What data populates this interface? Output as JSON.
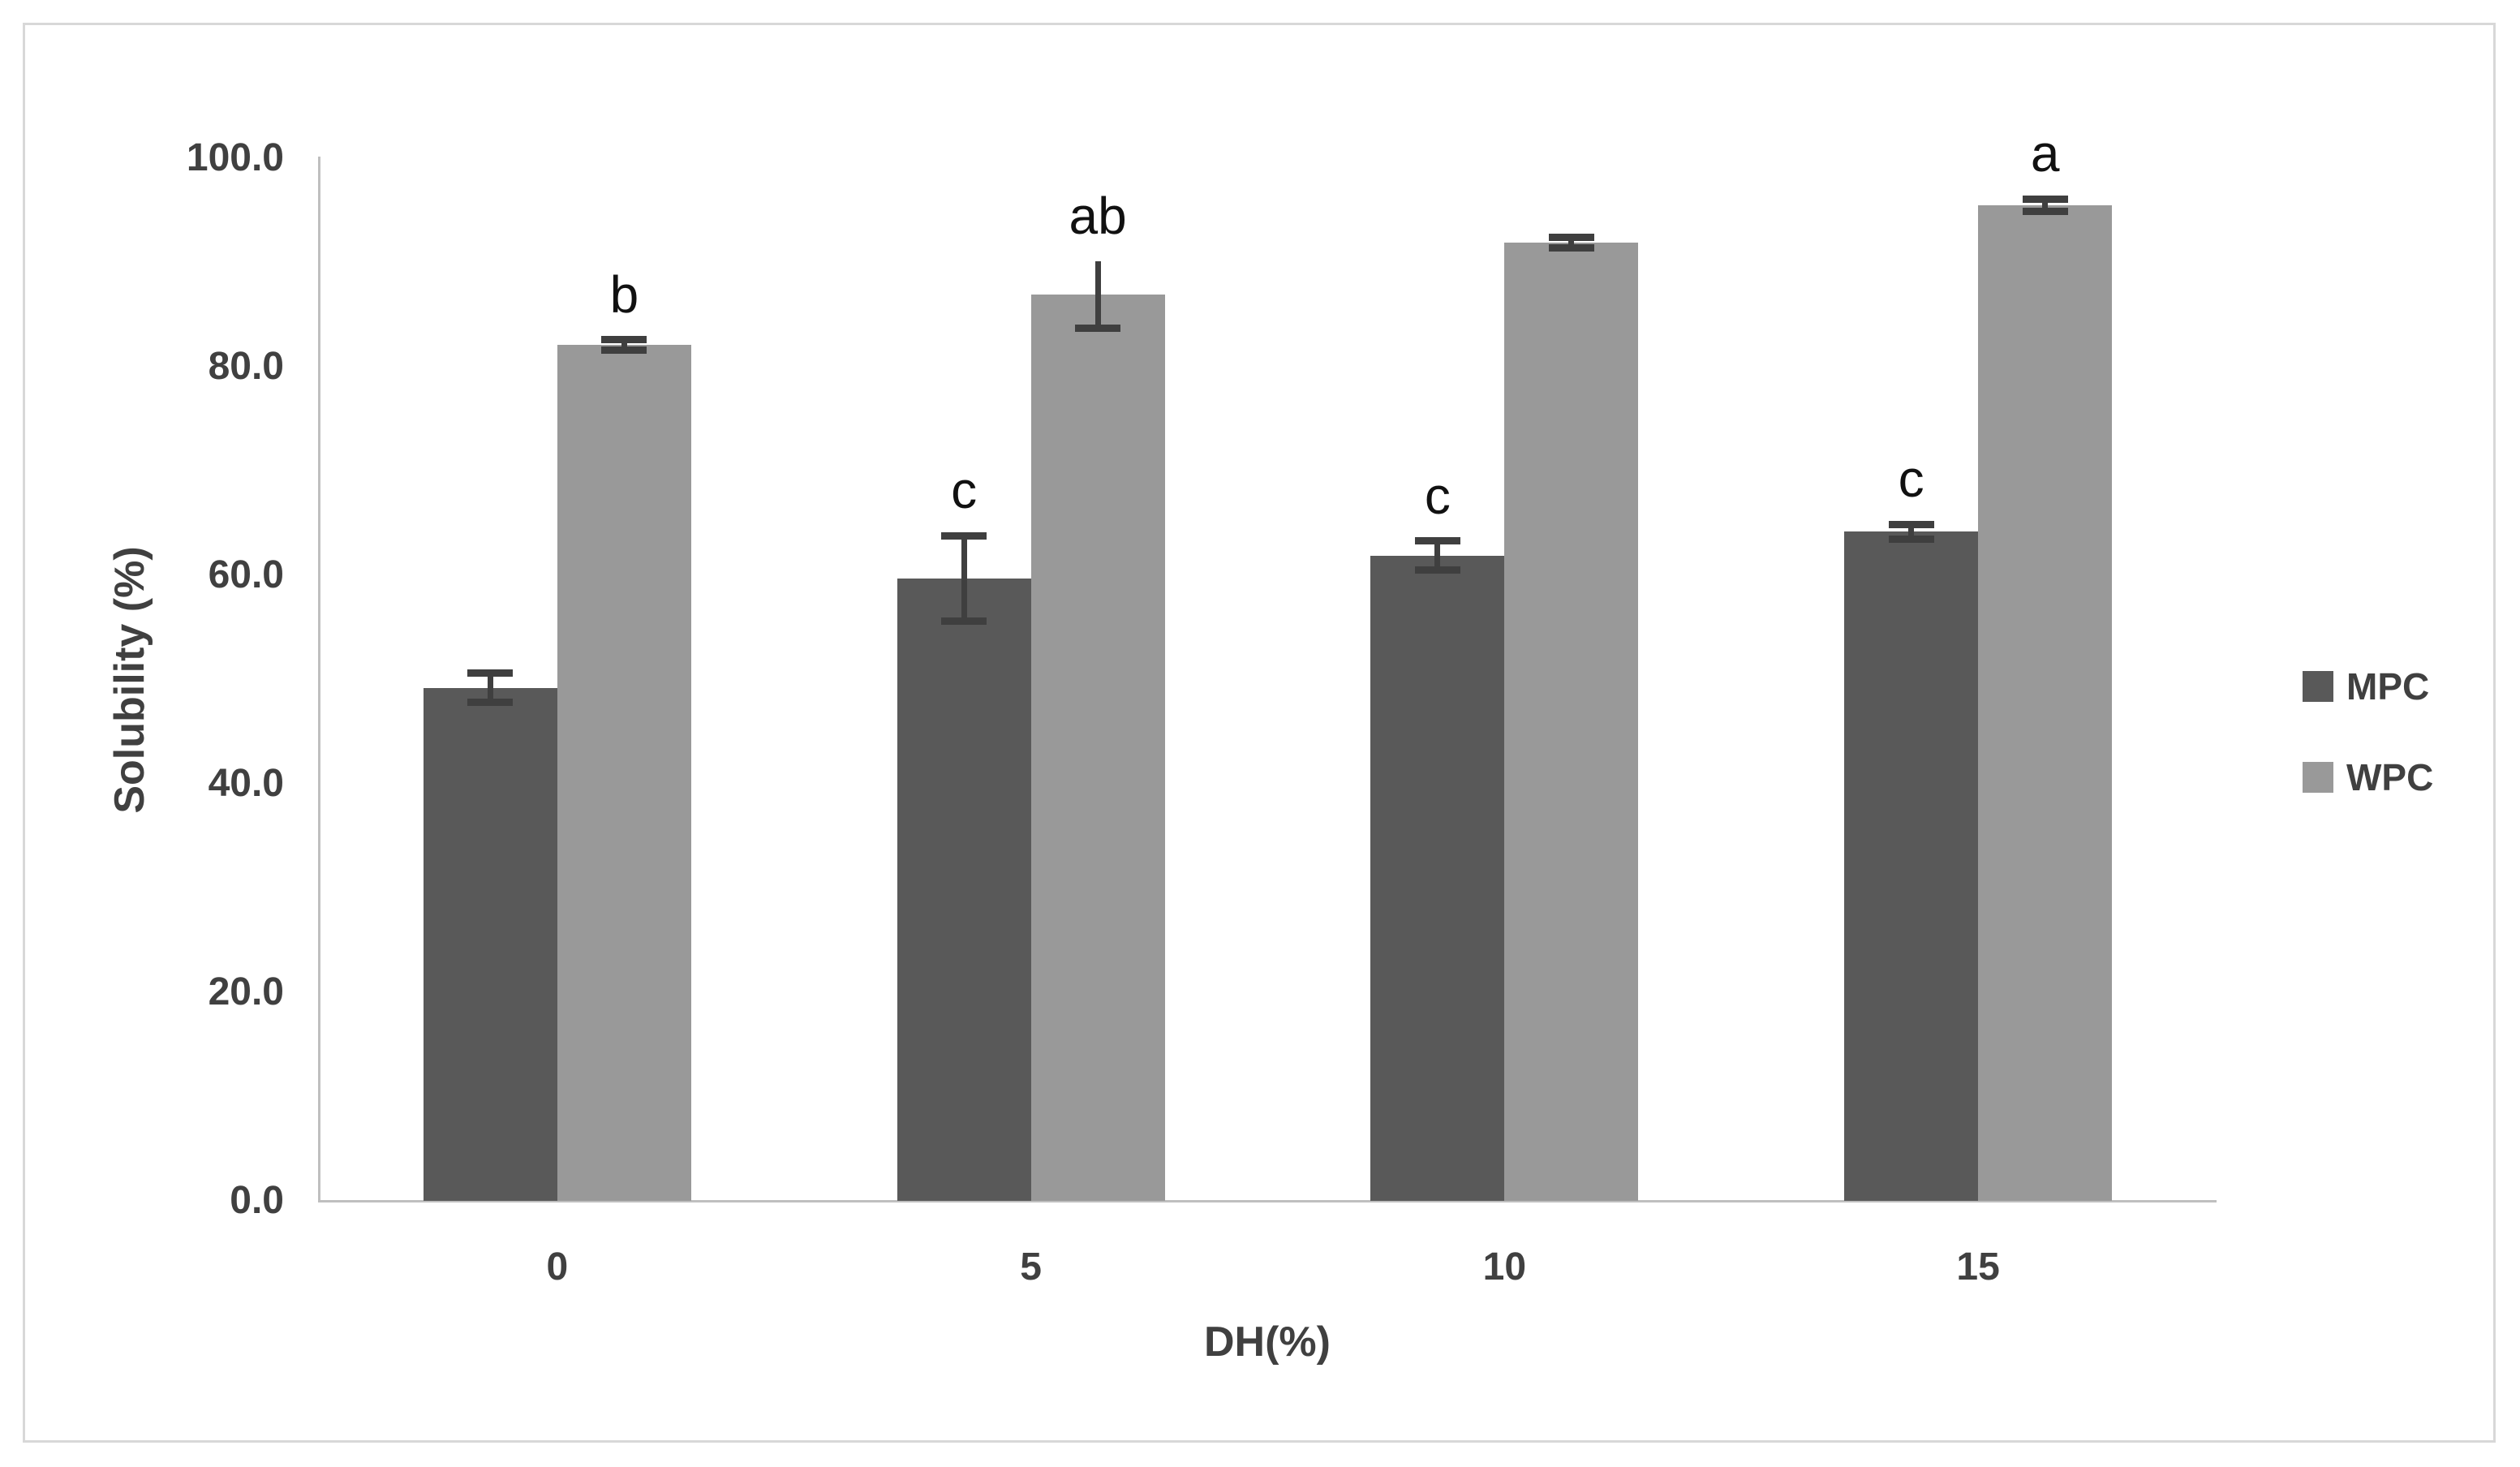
{
  "figure": {
    "background": "#ffffff",
    "border_color": "#d8d8d8"
  },
  "chart_data": {
    "type": "bar",
    "title": "",
    "xlabel": "DH(%)",
    "ylabel": "Solubility (%)",
    "categories": [
      "0",
      "5",
      "10",
      "15"
    ],
    "series": [
      {
        "name": "MPC",
        "color": "#595959",
        "values": [
          49.2,
          59.7,
          61.9,
          64.2
        ],
        "errors": [
          1.4,
          4.1,
          1.4,
          0.7
        ],
        "letters": [
          "",
          "c",
          "c",
          "c"
        ],
        "top_caps": [
          true,
          true,
          true,
          true
        ]
      },
      {
        "name": "WPC",
        "color": "#999999",
        "values": [
          82.1,
          86.9,
          91.9,
          95.5
        ],
        "errors": [
          0.5,
          3.2,
          0.5,
          0.6
        ],
        "letters": [
          "b",
          "ab",
          "",
          "a"
        ],
        "top_caps": [
          true,
          false,
          true,
          true
        ]
      }
    ],
    "ylim": [
      0,
      100
    ],
    "ytick_values": [
      0,
      20,
      40,
      60,
      80,
      100
    ],
    "ytick_labels": [
      "0.0",
      "20.0",
      "40.0",
      "60.0",
      "80.0",
      "100.0"
    ],
    "grid": "off",
    "legend_position": "right",
    "error_bar_color": "#3f3f3f",
    "annotation_color": "#111111",
    "axis_line_color": "#bfbfbf",
    "tick_label_color": "#404040"
  }
}
